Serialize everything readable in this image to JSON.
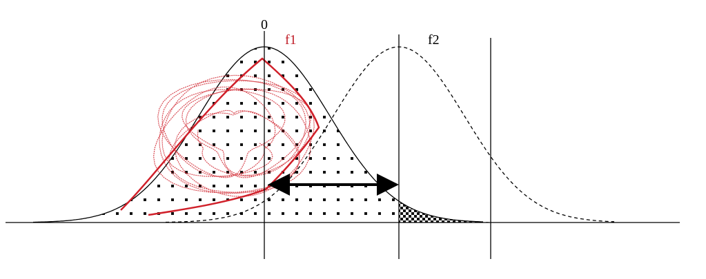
{
  "labels": {
    "zero": "0",
    "f1": "f1",
    "f2": "f2"
  }
}
